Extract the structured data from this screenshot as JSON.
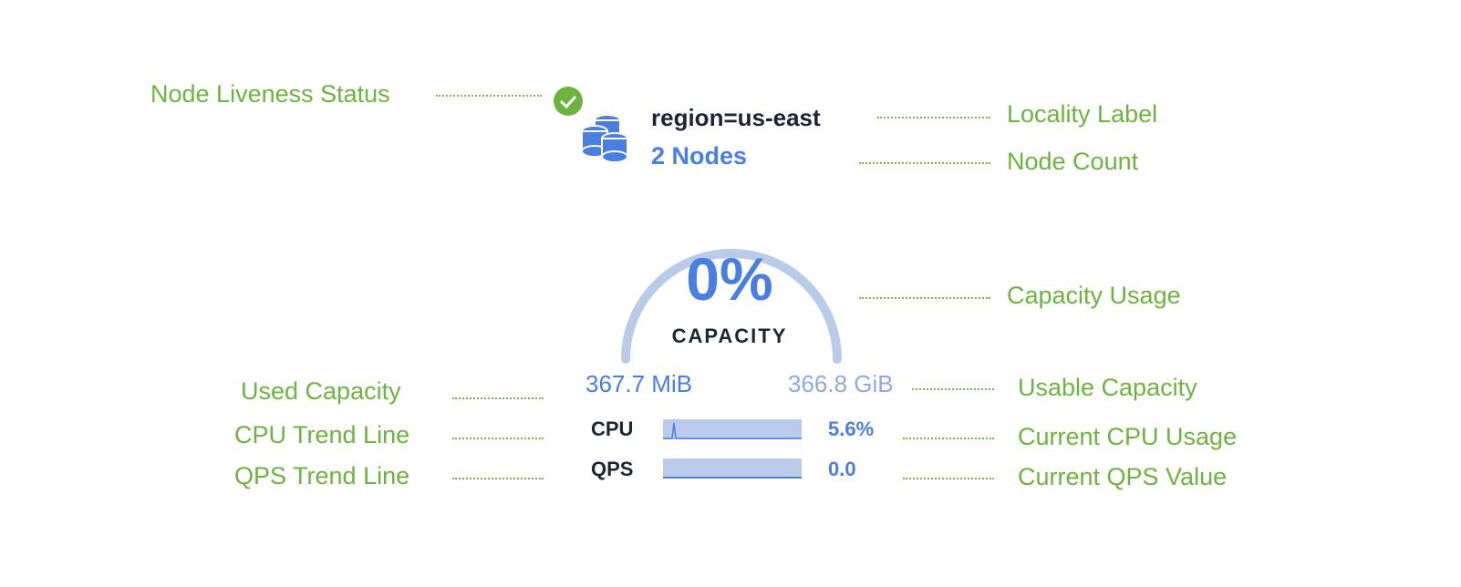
{
  "annotations": {
    "liveness": "Node Liveness Status",
    "locality": "Locality Label",
    "node_count": "Node Count",
    "capacity_usage": "Capacity Usage",
    "used_capacity": "Used Capacity",
    "usable_capacity": "Usable Capacity",
    "cpu_trend": "CPU Trend Line",
    "current_cpu": "Current CPU Usage",
    "qps_trend": "QPS Trend Line",
    "current_qps": "Current QPS Value"
  },
  "widget": {
    "liveness_icon": "check-circle-icon",
    "liveness_color": "#6db33f",
    "node_icon": "database-stack-icon",
    "locality": "region=us-east",
    "node_count": "2 Nodes",
    "capacity_percent": "0%",
    "capacity_label": "CAPACITY",
    "capacity_fraction": 0,
    "used": "367.7 MiB",
    "usable": "366.8 GiB",
    "cpu_label": "CPU",
    "cpu_value": "5.6%",
    "qps_label": "QPS",
    "qps_value": "0.0",
    "accent": "#4a7ee0"
  }
}
